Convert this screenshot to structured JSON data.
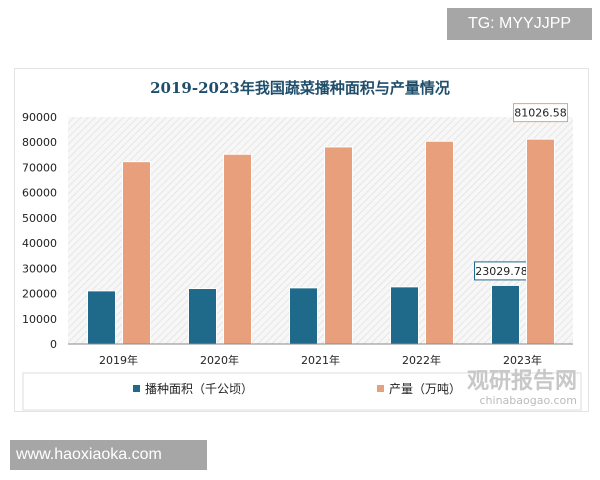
{
  "watermarks": {
    "top": "TG: MYYJJPP",
    "bottom": "www.haoxiaoka.com",
    "logo_cn": "观研报告网",
    "logo_en": "chinabaogao.com"
  },
  "chart_data": {
    "type": "bar",
    "title": "2019-2023年我国蔬菜播种面积与产量情况",
    "categories": [
      "2019年",
      "2020年",
      "2021年",
      "2022年",
      "2023年"
    ],
    "series": [
      {
        "name": "播种面积（千公顷）",
        "color": "#1f6a8a",
        "values": [
          20870,
          21800,
          22060,
          22460,
          23029.78
        ],
        "labels": [
          null,
          null,
          null,
          null,
          "23029.78"
        ]
      },
      {
        "name": "产量（万吨）",
        "color": "#e8a07c",
        "values": [
          72100,
          75030,
          77940,
          80190,
          81026.58
        ],
        "labels": [
          null,
          null,
          null,
          null,
          "81026.58"
        ]
      }
    ],
    "ylim": [
      0,
      90000
    ],
    "yticks": [
      "0",
      "10000",
      "20000",
      "30000",
      "40000",
      "50000",
      "60000",
      "70000",
      "80000",
      "90000"
    ],
    "legend": "bottom",
    "grid": false
  }
}
